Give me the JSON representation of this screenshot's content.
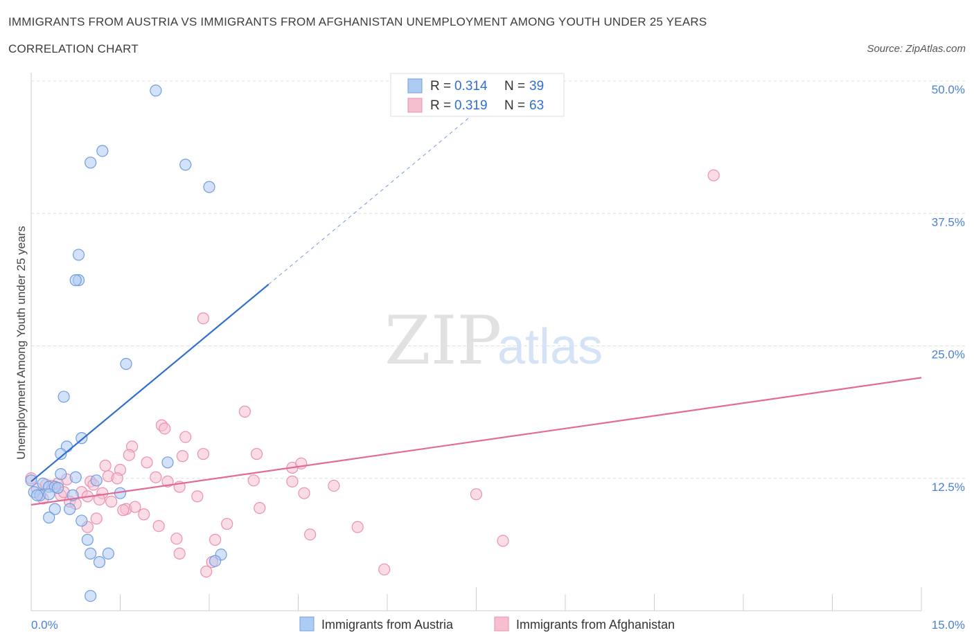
{
  "title": "IMMIGRANTS FROM AUSTRIA VS IMMIGRANTS FROM AFGHANISTAN UNEMPLOYMENT AMONG YOUTH UNDER 25 YEARS",
  "subtitle": "CORRELATION CHART",
  "source": "Source: ZipAtlas.com",
  "watermark": {
    "zip": "ZIP",
    "atlas": "atlas"
  },
  "legend_top": [
    {
      "r_label": "R =",
      "r_value": "0.314",
      "n_label": "N =",
      "n_value": "39"
    },
    {
      "r_label": "R =",
      "r_value": "0.319",
      "n_label": "N =",
      "n_value": "63"
    }
  ],
  "colors": {
    "austria_fill": "#aecbf3",
    "austria_stroke": "#6f9de0",
    "austria_line": "#2f6fd0",
    "afghan_fill": "#f6bfd0",
    "afghan_stroke": "#eb8fae",
    "afghan_line": "#e06b96",
    "tick_text": "#4a7fd6",
    "grid": "#dddddd"
  },
  "chart_data": {
    "type": "scatter",
    "ylabel": "Unemployment Among Youth under 25 years",
    "xlim": [
      0,
      15
    ],
    "ylim": [
      0,
      50
    ],
    "y_ticks": [
      {
        "value": 12.5,
        "label": "12.5%"
      },
      {
        "value": 25,
        "label": "25.0%"
      },
      {
        "value": 37.5,
        "label": "37.5%"
      },
      {
        "value": 50,
        "label": "50.0%"
      }
    ],
    "x_tick_labels": [
      {
        "value": 0,
        "label": "0.0%"
      },
      {
        "value": 15,
        "label": "15.0%"
      }
    ],
    "series": [
      {
        "name": "Immigrants from Austria",
        "points": [
          [
            2.1,
            49.1
          ],
          [
            1.2,
            43.4
          ],
          [
            1.0,
            42.3
          ],
          [
            2.6,
            42.1
          ],
          [
            3.0,
            40.0
          ],
          [
            0.8,
            33.6
          ],
          [
            0.8,
            31.2
          ],
          [
            0.75,
            31.2
          ],
          [
            1.6,
            23.3
          ],
          [
            0.55,
            20.2
          ],
          [
            0.6,
            15.5
          ],
          [
            0.85,
            16.3
          ],
          [
            0.5,
            14.8
          ],
          [
            2.3,
            14.0
          ],
          [
            0.5,
            12.9
          ],
          [
            0.75,
            12.6
          ],
          [
            1.1,
            12.3
          ],
          [
            0.2,
            12.0
          ],
          [
            0.3,
            11.7
          ],
          [
            0.4,
            11.7
          ],
          [
            0.05,
            11.2
          ],
          [
            0.15,
            10.9
          ],
          [
            0.1,
            10.9
          ],
          [
            0.7,
            10.9
          ],
          [
            1.5,
            11.1
          ],
          [
            0.4,
            9.6
          ],
          [
            0.65,
            9.6
          ],
          [
            0.3,
            8.8
          ],
          [
            0.85,
            8.5
          ],
          [
            0.95,
            6.7
          ],
          [
            1.0,
            5.4
          ],
          [
            1.3,
            5.4
          ],
          [
            1.15,
            4.6
          ],
          [
            3.2,
            5.3
          ],
          [
            3.1,
            4.7
          ],
          [
            1.0,
            1.4
          ],
          [
            0.0,
            12.3
          ],
          [
            0.3,
            11.0
          ],
          [
            0.45,
            11.6
          ]
        ],
        "trend": {
          "x0": 0,
          "y0": 12.2,
          "x1": 4.0,
          "y1": 30.8,
          "dash_to_x": 7.8,
          "dash_to_y": 48.5
        }
      },
      {
        "name": "Immigrants from Afghanistan",
        "points": [
          [
            11.5,
            41.1
          ],
          [
            2.9,
            27.6
          ],
          [
            3.6,
            18.8
          ],
          [
            2.2,
            17.5
          ],
          [
            2.25,
            17.2
          ],
          [
            2.6,
            16.4
          ],
          [
            1.7,
            15.5
          ],
          [
            2.9,
            14.8
          ],
          [
            3.8,
            14.8
          ],
          [
            2.55,
            14.6
          ],
          [
            1.65,
            14.7
          ],
          [
            1.95,
            14.0
          ],
          [
            1.25,
            13.7
          ],
          [
            4.4,
            13.5
          ],
          [
            4.55,
            13.9
          ],
          [
            1.5,
            13.3
          ],
          [
            1.3,
            12.7
          ],
          [
            1.45,
            12.5
          ],
          [
            2.1,
            12.6
          ],
          [
            3.75,
            12.3
          ],
          [
            1.0,
            12.2
          ],
          [
            0.6,
            12.4
          ],
          [
            0.45,
            12.0
          ],
          [
            0.35,
            11.8
          ],
          [
            2.5,
            11.7
          ],
          [
            5.1,
            11.8
          ],
          [
            0.85,
            11.2
          ],
          [
            1.2,
            11.1
          ],
          [
            0.5,
            10.9
          ],
          [
            0.95,
            10.8
          ],
          [
            1.15,
            10.5
          ],
          [
            2.8,
            10.8
          ],
          [
            4.6,
            11.1
          ],
          [
            7.5,
            11.0
          ],
          [
            0.65,
            10.3
          ],
          [
            0.2,
            10.6
          ],
          [
            1.35,
            10.3
          ],
          [
            3.85,
            9.7
          ],
          [
            1.6,
            9.6
          ],
          [
            1.75,
            9.8
          ],
          [
            1.9,
            9.1
          ],
          [
            1.1,
            8.7
          ],
          [
            2.15,
            8.0
          ],
          [
            3.3,
            8.2
          ],
          [
            5.5,
            7.9
          ],
          [
            4.7,
            7.2
          ],
          [
            0.95,
            7.9
          ],
          [
            2.45,
            6.8
          ],
          [
            3.1,
            6.7
          ],
          [
            7.95,
            6.6
          ],
          [
            2.5,
            5.4
          ],
          [
            3.05,
            4.6
          ],
          [
            5.95,
            3.9
          ],
          [
            2.95,
            3.7
          ],
          [
            0.1,
            11.5
          ],
          [
            0.0,
            12.5
          ],
          [
            0.25,
            11.9
          ],
          [
            0.55,
            11.2
          ],
          [
            1.55,
            9.5
          ],
          [
            0.75,
            10.1
          ],
          [
            1.05,
            11.9
          ],
          [
            4.4,
            12.2
          ],
          [
            2.3,
            12.2
          ]
        ],
        "trend": {
          "x0": 0,
          "y0": 10.0,
          "x1": 15,
          "y1": 22.0
        }
      }
    ],
    "bottom_legend": [
      "Immigrants from Austria",
      "Immigrants from Afghanistan"
    ]
  }
}
